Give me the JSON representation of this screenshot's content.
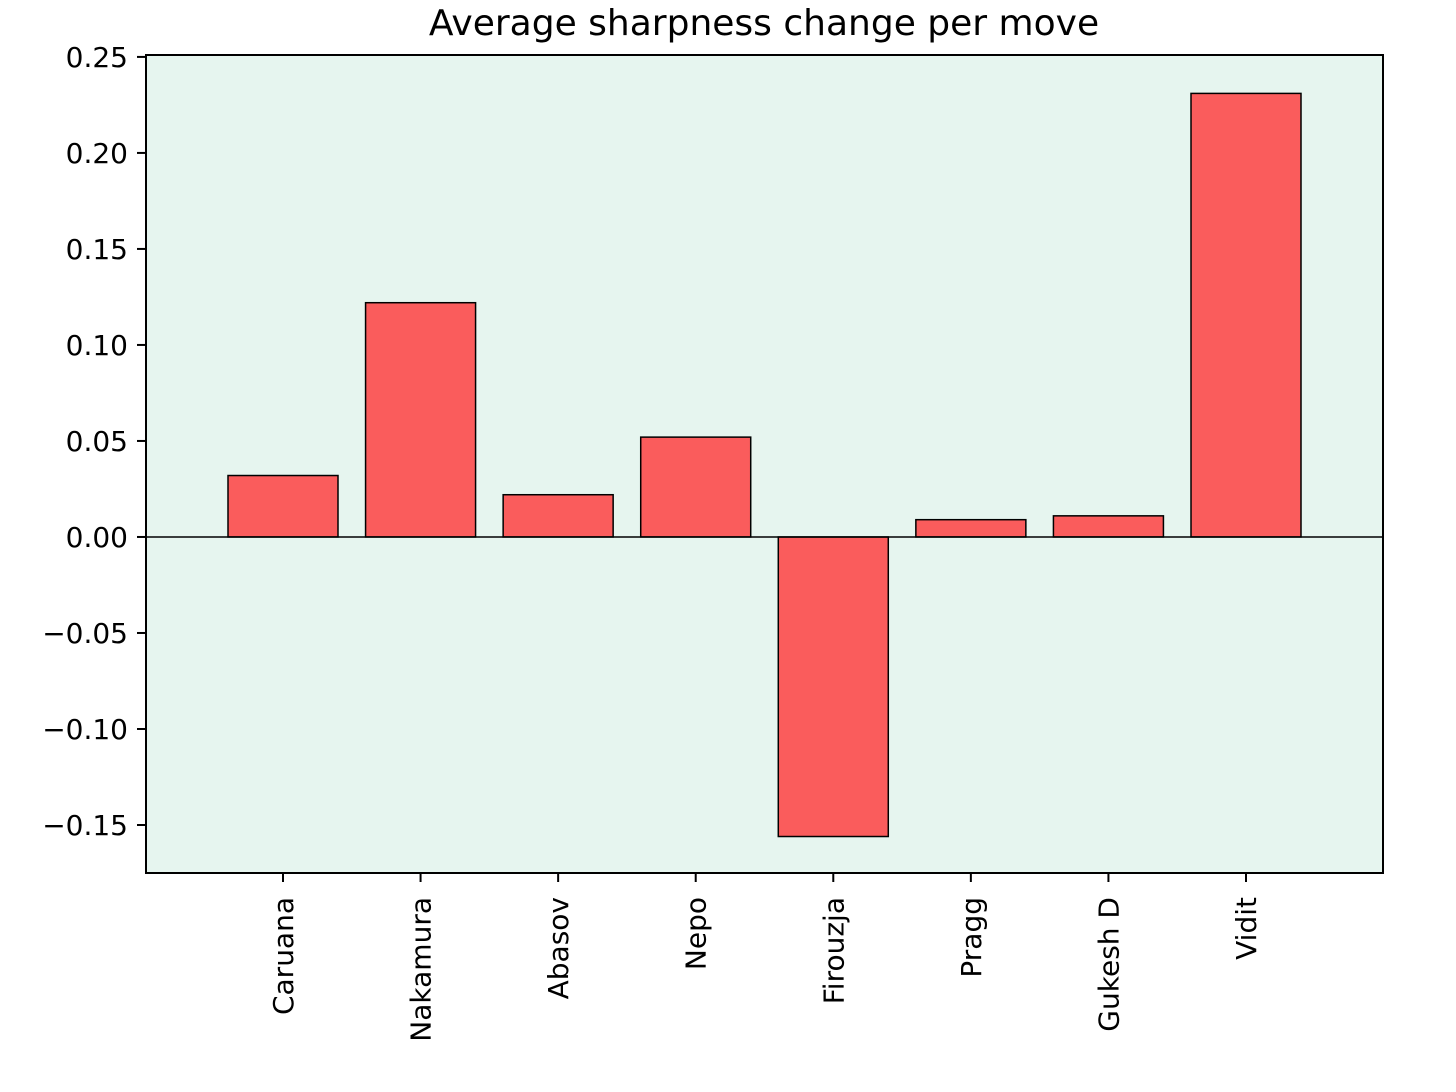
{
  "chart_data": {
    "type": "bar",
    "title": "Average sharpness change per move",
    "xlabel": "",
    "ylabel": "",
    "categories": [
      "Caruana",
      "Nakamura",
      "Abasov",
      "Nepo",
      "Firouzja",
      "Pragg",
      "Gukesh D",
      "Vidit"
    ],
    "values": [
      0.032,
      0.122,
      0.022,
      0.052,
      -0.156,
      0.009,
      0.011,
      0.231
    ],
    "ylim": [
      -0.175,
      0.251
    ],
    "yticks": [
      -0.15,
      -0.1,
      -0.05,
      0.0,
      0.05,
      0.1,
      0.15,
      0.2,
      0.25
    ],
    "ytick_labels": [
      "−0.15",
      "−0.10",
      "−0.05",
      "0.00",
      "0.05",
      "0.10",
      "0.15",
      "0.20",
      "0.25"
    ],
    "zero_line": true,
    "grid": false,
    "legend": "none",
    "bar_color": "#fa5c5c",
    "plot_background": "#e6f5ef"
  }
}
